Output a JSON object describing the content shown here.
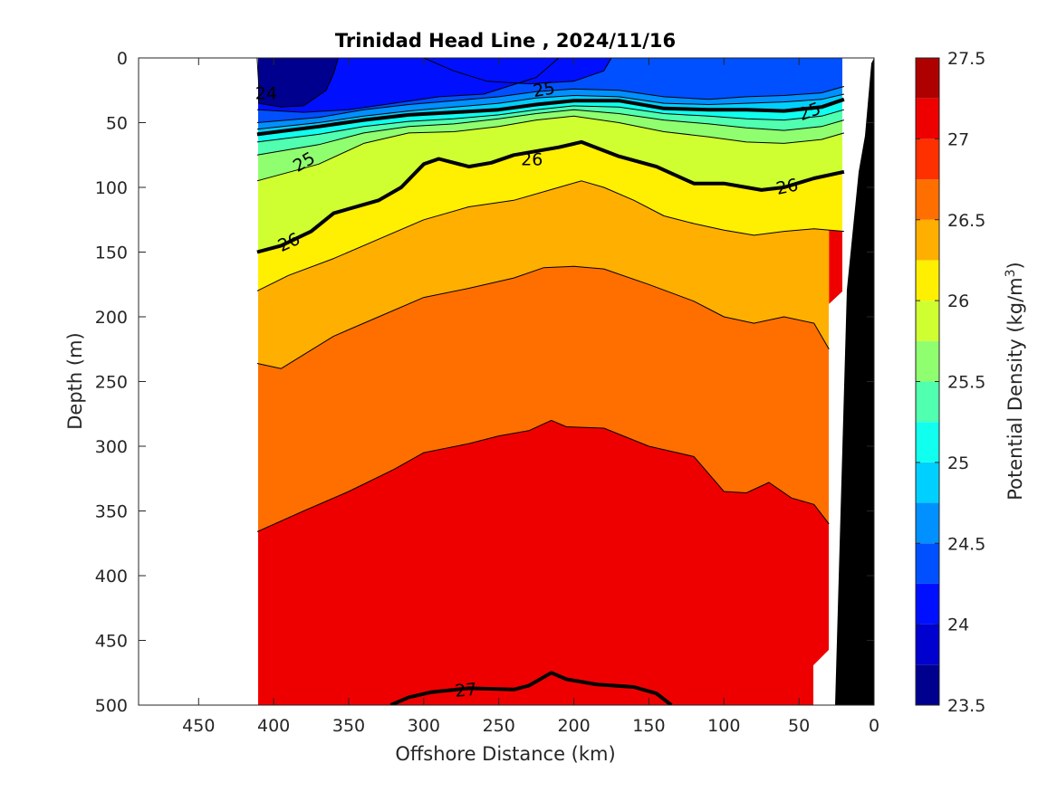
{
  "chart_data": {
    "type": "contour",
    "title": "Trinidad Head Line , 2024/11/16",
    "xlabel": "Offshore Distance (km)",
    "ylabel": "Depth (m)",
    "xlim": [
      490,
      0
    ],
    "ylim": [
      0,
      500
    ],
    "x_reversed": true,
    "y_reversed": true,
    "xticks": [
      450,
      400,
      350,
      300,
      250,
      200,
      150,
      100,
      50,
      0
    ],
    "yticks": [
      0,
      50,
      100,
      150,
      200,
      250,
      300,
      350,
      400,
      450,
      500
    ],
    "colorbar": {
      "label": "Potential Density (kg/m",
      "label_sup": "3",
      "label_end": ")",
      "range": [
        23.5,
        27.5
      ],
      "ticks": [
        23.5,
        24,
        24.5,
        25,
        25.5,
        26,
        26.5,
        27,
        27.5
      ],
      "levels": [
        23.5,
        23.75,
        24,
        24.25,
        24.5,
        24.75,
        25,
        25.25,
        25.5,
        25.75,
        26,
        26.25,
        26.5,
        26.75,
        27,
        27.25,
        27.5
      ],
      "colors": [
        "#00008f",
        "#0000cf",
        "#0010ff",
        "#0050ff",
        "#0090ff",
        "#00d0ff",
        "#10ffef",
        "#50ffaf",
        "#90ff6f",
        "#cfff30",
        "#ffef00",
        "#ffaf00",
        "#ff6f00",
        "#ff3000",
        "#ef0000",
        "#af0000"
      ]
    },
    "contours": [
      {
        "level": 23.75,
        "points": [
          [
            411,
            0
          ],
          [
            410,
            20
          ],
          [
            410,
            35
          ],
          [
            395,
            38
          ],
          [
            380,
            37
          ],
          [
            365,
            25
          ],
          [
            360,
            12
          ],
          [
            357,
            0
          ]
        ]
      },
      {
        "level": 24.25,
        "points": [
          [
            411,
            40
          ],
          [
            380,
            42
          ],
          [
            350,
            40
          ],
          [
            320,
            35
          ],
          [
            290,
            30
          ],
          [
            260,
            28
          ],
          [
            225,
            15
          ],
          [
            210,
            0
          ]
        ]
      },
      {
        "level": 24.25,
        "points": [
          [
            175,
            0
          ],
          [
            180,
            10
          ],
          [
            200,
            18
          ],
          [
            230,
            20
          ],
          [
            258,
            18
          ],
          [
            280,
            10
          ],
          [
            300,
            0
          ]
        ]
      },
      {
        "level": 24.5,
        "points": [
          [
            411,
            50
          ],
          [
            370,
            46
          ],
          [
            340,
            40
          ],
          [
            310,
            36
          ],
          [
            280,
            33
          ],
          [
            250,
            30
          ],
          [
            225,
            26
          ],
          [
            200,
            24
          ],
          [
            170,
            25
          ],
          [
            140,
            30
          ],
          [
            110,
            32
          ],
          [
            85,
            30
          ],
          [
            60,
            29
          ],
          [
            35,
            27
          ],
          [
            20,
            22
          ]
        ]
      },
      {
        "level": 24.75,
        "points": [
          [
            411,
            55
          ],
          [
            370,
            50
          ],
          [
            340,
            45
          ],
          [
            310,
            41
          ],
          [
            280,
            38
          ],
          [
            250,
            35
          ],
          [
            225,
            31
          ],
          [
            200,
            29
          ],
          [
            170,
            30
          ],
          [
            140,
            35
          ],
          [
            110,
            36
          ],
          [
            85,
            35
          ],
          [
            60,
            34
          ],
          [
            35,
            32
          ],
          [
            20,
            28
          ]
        ]
      },
      {
        "level": 25.0,
        "points": [
          [
            411,
            59
          ],
          [
            370,
            53
          ],
          [
            340,
            48
          ],
          [
            310,
            44
          ],
          [
            280,
            42
          ],
          [
            250,
            40
          ],
          [
            225,
            36
          ],
          [
            200,
            33
          ],
          [
            170,
            33
          ],
          [
            140,
            39
          ],
          [
            110,
            40
          ],
          [
            85,
            40
          ],
          [
            60,
            41
          ],
          [
            35,
            38
          ],
          [
            20,
            32
          ]
        ]
      },
      {
        "level": 25.25,
        "points": [
          [
            411,
            65
          ],
          [
            370,
            59
          ],
          [
            340,
            53
          ],
          [
            310,
            49
          ],
          [
            280,
            47
          ],
          [
            250,
            44
          ],
          [
            225,
            40
          ],
          [
            200,
            37
          ],
          [
            170,
            38
          ],
          [
            140,
            43
          ],
          [
            110,
            45
          ],
          [
            85,
            47
          ],
          [
            60,
            48
          ],
          [
            35,
            45
          ],
          [
            20,
            40
          ]
        ]
      },
      {
        "level": 25.5,
        "points": [
          [
            411,
            75
          ],
          [
            370,
            67
          ],
          [
            340,
            58
          ],
          [
            310,
            53
          ],
          [
            280,
            51
          ],
          [
            250,
            47
          ],
          [
            225,
            43
          ],
          [
            200,
            40
          ],
          [
            170,
            43
          ],
          [
            140,
            48
          ],
          [
            110,
            51
          ],
          [
            85,
            54
          ],
          [
            60,
            56
          ],
          [
            35,
            53
          ],
          [
            20,
            48
          ]
        ]
      },
      {
        "level": 25.75,
        "points": [
          [
            411,
            95
          ],
          [
            370,
            82
          ],
          [
            340,
            66
          ],
          [
            310,
            58
          ],
          [
            280,
            57
          ],
          [
            250,
            53
          ],
          [
            225,
            48
          ],
          [
            200,
            45
          ],
          [
            170,
            50
          ],
          [
            140,
            57
          ],
          [
            110,
            61
          ],
          [
            85,
            65
          ],
          [
            60,
            66
          ],
          [
            35,
            63
          ],
          [
            20,
            58
          ]
        ]
      },
      {
        "level": 26.0,
        "points": [
          [
            411,
            150
          ],
          [
            395,
            145
          ],
          [
            375,
            134
          ],
          [
            360,
            120
          ],
          [
            330,
            110
          ],
          [
            315,
            100
          ],
          [
            300,
            82
          ],
          [
            290,
            78
          ],
          [
            270,
            84
          ],
          [
            255,
            81
          ],
          [
            240,
            75
          ],
          [
            210,
            69
          ],
          [
            195,
            65
          ],
          [
            170,
            76
          ],
          [
            145,
            84
          ],
          [
            120,
            97
          ],
          [
            100,
            97
          ],
          [
            85,
            100
          ],
          [
            75,
            102
          ],
          [
            60,
            100
          ],
          [
            40,
            93
          ],
          [
            20,
            88
          ]
        ]
      },
      {
        "level": 26.25,
        "points": [
          [
            411,
            180
          ],
          [
            390,
            168
          ],
          [
            360,
            155
          ],
          [
            330,
            140
          ],
          [
            300,
            125
          ],
          [
            270,
            115
          ],
          [
            240,
            110
          ],
          [
            210,
            100
          ],
          [
            195,
            95
          ],
          [
            180,
            100
          ],
          [
            160,
            110
          ],
          [
            140,
            122
          ],
          [
            120,
            128
          ],
          [
            100,
            133
          ],
          [
            80,
            137
          ],
          [
            60,
            134
          ],
          [
            40,
            132
          ],
          [
            20,
            134
          ]
        ]
      },
      {
        "level": 26.5,
        "points": [
          [
            411,
            236
          ],
          [
            395,
            240
          ],
          [
            360,
            215
          ],
          [
            330,
            200
          ],
          [
            300,
            185
          ],
          [
            270,
            178
          ],
          [
            240,
            170
          ],
          [
            220,
            162
          ],
          [
            200,
            161
          ],
          [
            180,
            163
          ],
          [
            150,
            175
          ],
          [
            120,
            188
          ],
          [
            100,
            200
          ],
          [
            80,
            205
          ],
          [
            60,
            200
          ],
          [
            40,
            205
          ],
          [
            30,
            225
          ]
        ]
      },
      {
        "level": 26.75,
        "points": [
          [
            411,
            366
          ],
          [
            380,
            350
          ],
          [
            350,
            335
          ],
          [
            320,
            318
          ],
          [
            300,
            305
          ],
          [
            270,
            298
          ],
          [
            250,
            292
          ],
          [
            230,
            288
          ],
          [
            215,
            280
          ],
          [
            205,
            285
          ],
          [
            180,
            286
          ],
          [
            150,
            300
          ],
          [
            120,
            308
          ],
          [
            100,
            335
          ],
          [
            85,
            336
          ],
          [
            70,
            328
          ],
          [
            55,
            340
          ],
          [
            40,
            345
          ],
          [
            30,
            360
          ]
        ]
      },
      {
        "level": 27.0,
        "points": [
          [
            322,
            500
          ],
          [
            310,
            494
          ],
          [
            295,
            490
          ],
          [
            270,
            487
          ],
          [
            240,
            488
          ],
          [
            230,
            485
          ],
          [
            215,
            475
          ],
          [
            205,
            480
          ],
          [
            185,
            484
          ],
          [
            160,
            486
          ],
          [
            145,
            491
          ],
          [
            135,
            500
          ]
        ]
      }
    ],
    "contour_labels": [
      {
        "text": "25",
        "at": [
          380,
          80
        ],
        "angle": -30
      },
      {
        "text": "25",
        "at": [
          220,
          24
        ],
        "angle": -10
      },
      {
        "text": "25",
        "at": [
          43,
          41
        ],
        "angle": -20
      },
      {
        "text": "26",
        "at": [
          390,
          142
        ],
        "angle": -25
      },
      {
        "text": "26",
        "at": [
          228,
          78
        ],
        "angle": 0
      },
      {
        "text": "26",
        "at": [
          58,
          99
        ],
        "angle": -12
      },
      {
        "text": "27",
        "at": [
          272,
          488
        ],
        "angle": -5
      },
      {
        "text": "24",
        "at": [
          405,
          27
        ],
        "angle": 0
      }
    ]
  }
}
